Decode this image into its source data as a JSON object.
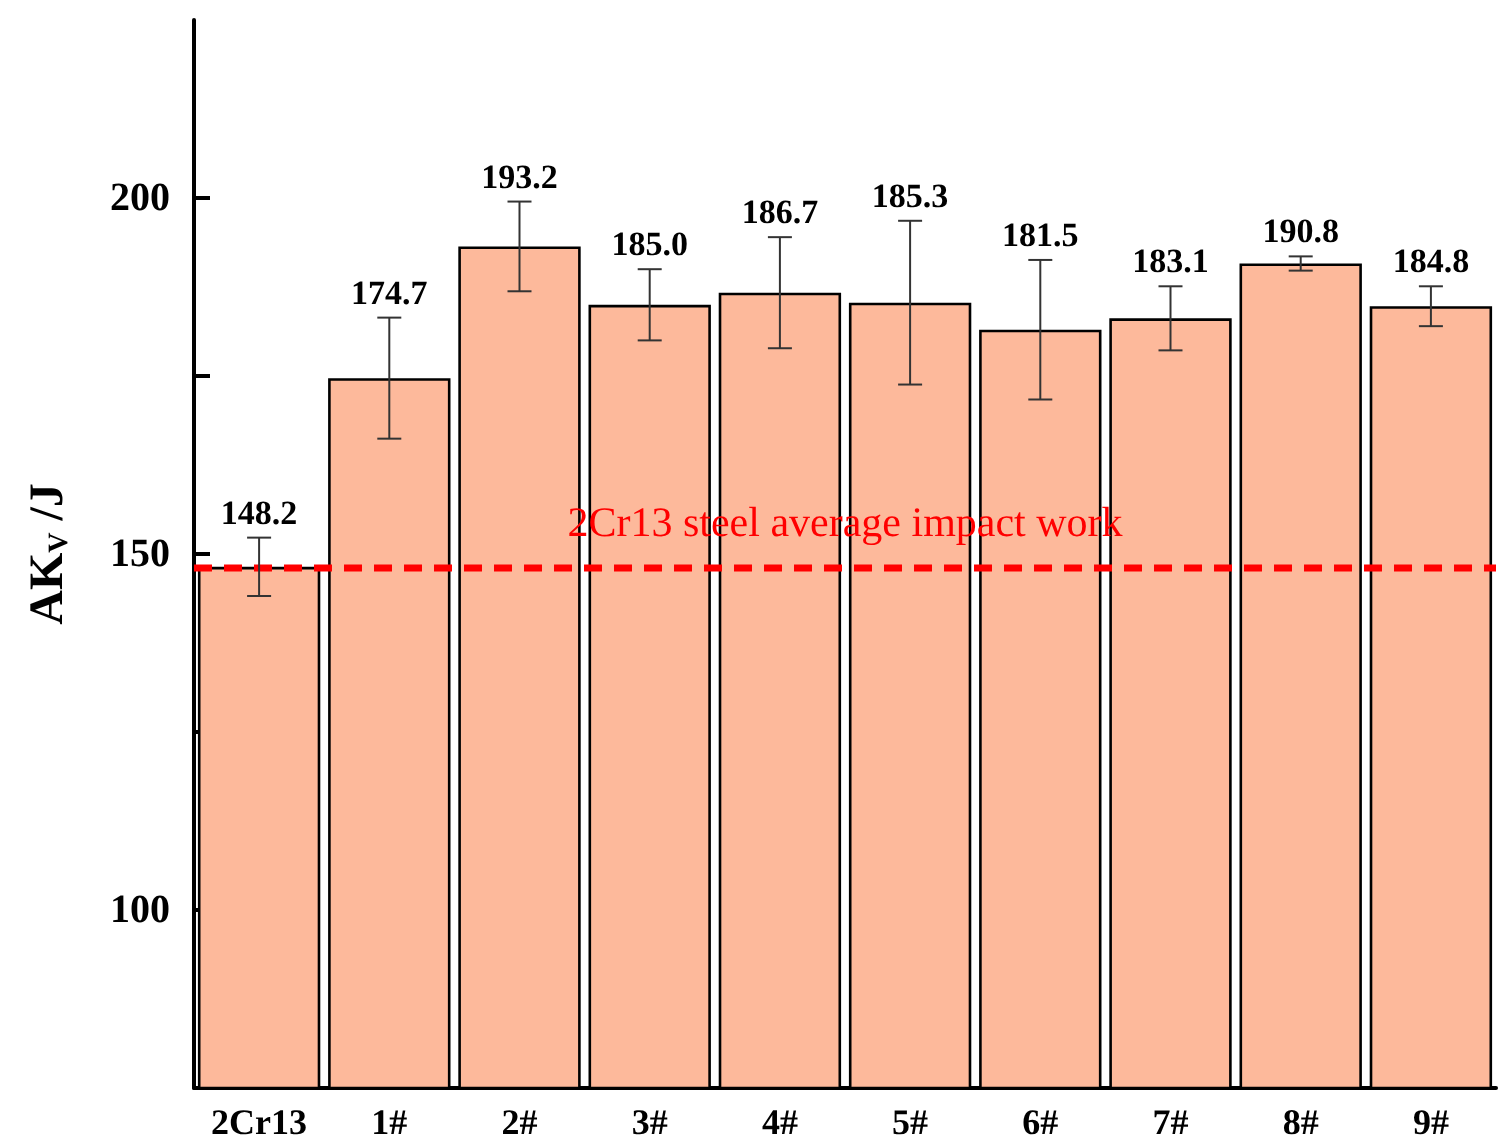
{
  "chart_data": {
    "type": "bar",
    "ylabel": "AK$_{V}$ /J",
    "categories": [
      "2Cr13",
      "1#",
      "2#",
      "3#",
      "4#",
      "5#",
      "6#",
      "7#",
      "8#",
      "9#"
    ],
    "values": [
      148.2,
      174.7,
      193.2,
      185.0,
      186.7,
      185.3,
      181.5,
      183.1,
      190.8,
      184.8
    ],
    "errors": [
      4.1,
      8.5,
      6.3,
      5.0,
      7.8,
      11.5,
      9.8,
      4.5,
      1.0,
      2.8
    ],
    "color": "#fdb99b",
    "value_labels": [
      "148.2",
      "174.7",
      "193.2",
      "185.0",
      "186.7",
      "185.3",
      "181.5",
      "183.1",
      "190.8",
      "184.8"
    ],
    "ylim": [
      75,
      225
    ],
    "yticks": [
      100,
      {
        "value": 125,
        "label": null
      },
      150,
      {
        "value": 175,
        "label": null
      },
      200
    ],
    "ref_lines": [
      {
        "axis": "y",
        "value": 148.2,
        "label": "2Cr13 steel average impact work",
        "color": "#ff0000",
        "line_style": "dashed"
      }
    ],
    "grid": false
  }
}
